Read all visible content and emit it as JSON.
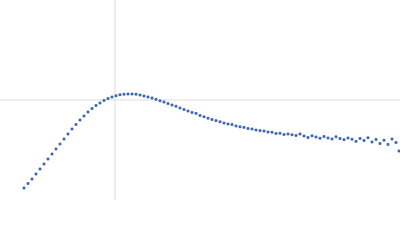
{
  "chart_data": {
    "type": "scatter",
    "color": "#3d66b3",
    "grid": true,
    "xlim": [
      0,
      400
    ],
    "ylim": [
      0,
      200
    ],
    "xticks": [
      115
    ],
    "yticks": [
      100
    ],
    "x": [
      24,
      28,
      32,
      36,
      40,
      44,
      48,
      52,
      56,
      60,
      64,
      68,
      72,
      76,
      80,
      84,
      88,
      92,
      96,
      100,
      104,
      108,
      112,
      116,
      120,
      124,
      128,
      132,
      136,
      140,
      144,
      148,
      152,
      156,
      160,
      164,
      168,
      172,
      176,
      180,
      184,
      188,
      192,
      196,
      200,
      204,
      208,
      212,
      216,
      220,
      224,
      228,
      232,
      236,
      240,
      244,
      248,
      252,
      256,
      260,
      264,
      268,
      272,
      276,
      280,
      284,
      288,
      292,
      296,
      300,
      304,
      308,
      312,
      316,
      320,
      324,
      328,
      332,
      336,
      340,
      344,
      348,
      352,
      356,
      360,
      364,
      368,
      372,
      376,
      380,
      384,
      388,
      392,
      396,
      399
    ],
    "values": [
      12,
      16.5,
      21,
      26,
      31,
      36,
      41,
      46,
      51,
      56,
      61,
      66,
      71,
      75.5,
      80,
      84,
      88,
      91.5,
      94.5,
      97,
      99.5,
      101.5,
      103,
      104.3,
      105.2,
      105.8,
      106,
      106,
      105.7,
      105,
      104,
      103,
      102,
      100.6,
      99.3,
      98,
      96.5,
      95,
      93.8,
      92,
      90.5,
      89,
      87.5,
      86.6,
      84.5,
      83.2,
      81.8,
      80.5,
      79.4,
      78.2,
      77,
      76,
      75.5,
      74,
      73.2,
      72.6,
      71.5,
      71,
      70,
      69.4,
      69,
      68,
      67.8,
      66.5,
      66.8,
      65.5,
      66,
      65.2,
      64.5,
      66,
      64,
      62.5,
      64.2,
      63,
      61.8,
      63.5,
      62,
      61,
      63.2,
      61.5,
      60.4,
      62,
      60.8,
      58.6,
      61.5,
      59.5,
      62.3,
      58,
      60.5,
      56.5,
      59.8,
      55.6,
      61,
      57.5,
      49
    ]
  }
}
